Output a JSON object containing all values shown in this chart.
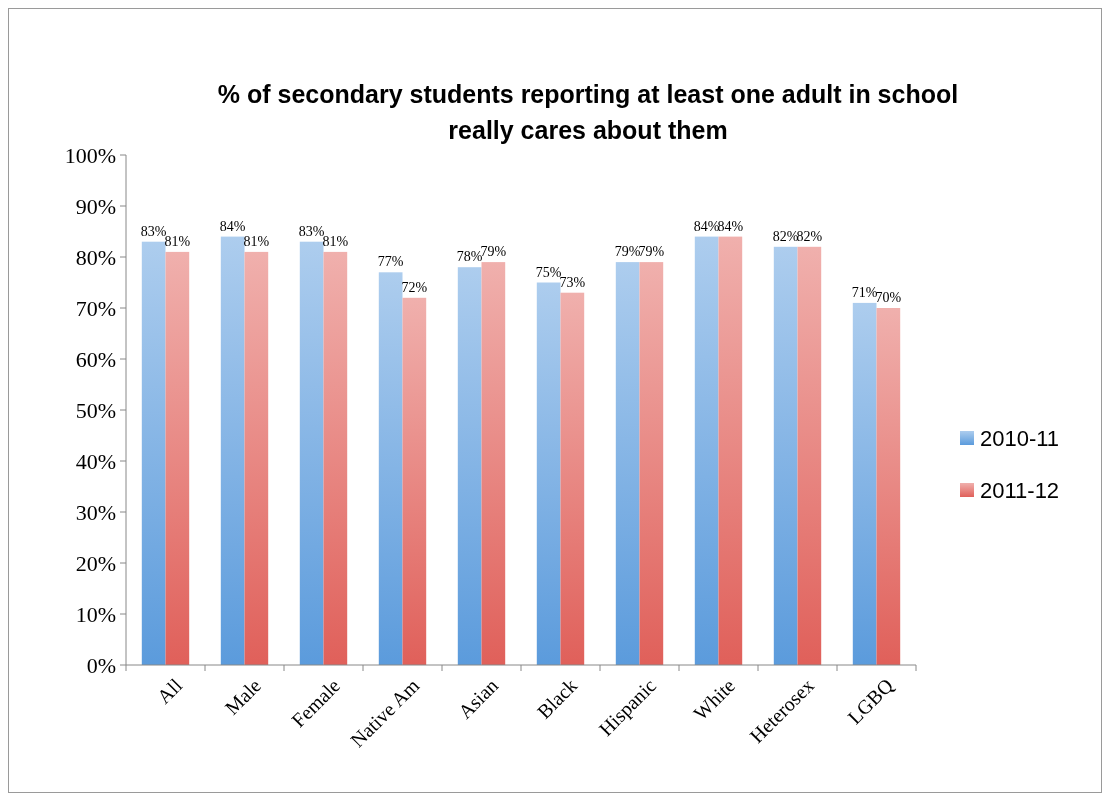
{
  "chart_data": {
    "type": "bar",
    "title": "% of secondary students reporting at least one adult in school really cares about them",
    "categories": [
      "All",
      "Male",
      "Female",
      "Native Am",
      "Asian",
      "Black",
      "Hispanic",
      "White",
      "Heterosex",
      "LGBQ"
    ],
    "series": [
      {
        "name": "2010-11",
        "color": "#5b9bdc",
        "values": [
          83,
          84,
          83,
          77,
          78,
          75,
          79,
          84,
          82,
          71
        ],
        "value_labels": [
          "83%",
          "84%",
          "83%",
          "77%",
          "78%",
          "75%",
          "79%",
          "84%",
          "82%",
          "71%"
        ]
      },
      {
        "name": "2011-12",
        "color": "#e0605a",
        "values": [
          81,
          81,
          81,
          72,
          79,
          73,
          79,
          84,
          82,
          70
        ],
        "value_labels": [
          "81%",
          "81%",
          "81%",
          "72%",
          "79%",
          "73%",
          "79%",
          "84%",
          "82%",
          "70%"
        ]
      }
    ],
    "ylim": [
      0,
      100
    ],
    "yticks": [
      {
        "value": 0,
        "label": "0%"
      },
      {
        "value": 10,
        "label": "10%"
      },
      {
        "value": 20,
        "label": "20%"
      },
      {
        "value": 30,
        "label": "30%"
      },
      {
        "value": 40,
        "label": "40%"
      },
      {
        "value": 50,
        "label": "50%"
      },
      {
        "value": 60,
        "label": "60%"
      },
      {
        "value": 70,
        "label": "70%"
      },
      {
        "value": 80,
        "label": "80%"
      },
      {
        "value": 90,
        "label": "90%"
      },
      {
        "value": 100,
        "label": "100%"
      }
    ],
    "grid": false,
    "legend": "right"
  }
}
